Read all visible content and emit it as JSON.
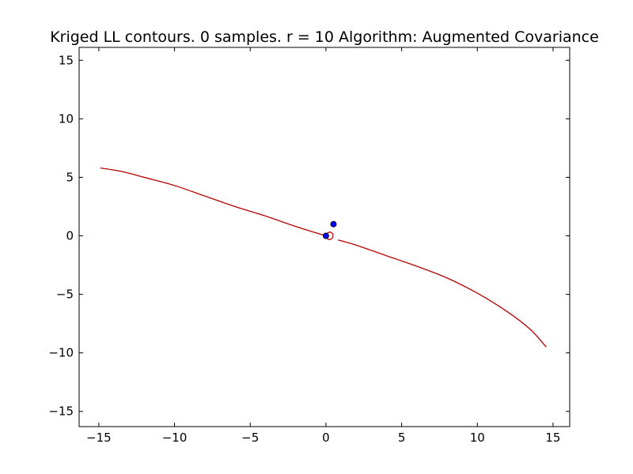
{
  "chart_data": {
    "type": "line",
    "title": "Kriged LL contours. 0 samples. r = 10 Algorithm: Augmented Covariance",
    "xlabel": "",
    "ylabel": "",
    "xlim": [
      -16.3,
      16.1
    ],
    "ylim": [
      -16.3,
      16.1
    ],
    "x_ticks": [
      -15,
      -10,
      -5,
      0,
      5,
      10,
      15
    ],
    "x_tick_labels": [
      "−15",
      "−10",
      "−5",
      "0",
      "5",
      "10",
      "15"
    ],
    "y_ticks": [
      -15,
      -10,
      -5,
      0,
      5,
      10,
      15
    ],
    "y_tick_labels": [
      "−15",
      "−10",
      "−5",
      "0",
      "5",
      "10",
      "15"
    ],
    "grid": false,
    "legend": "none",
    "series": [
      {
        "kind": "contour",
        "color": "#b30000",
        "x": [
          -14.9,
          -13.5,
          -12.0,
          -10.0,
          -8.0,
          -6.0,
          -4.0,
          -2.0,
          0.0
        ],
        "y": [
          5.8,
          5.5,
          5.0,
          4.3,
          3.4,
          2.5,
          1.7,
          0.8,
          0.0
        ]
      },
      {
        "kind": "contour",
        "color": "#b30000",
        "x": [
          0.8,
          2.0,
          4.0,
          6.0,
          8.0,
          10.0,
          12.0,
          13.5,
          14.55
        ],
        "y": [
          -0.35,
          -0.8,
          -1.7,
          -2.6,
          -3.6,
          -4.9,
          -6.5,
          -8.0,
          -9.5
        ]
      },
      {
        "kind": "contour-loop",
        "color": "#b30000",
        "cx": 0.25,
        "cy": 0.0,
        "rx": 0.22,
        "ry": 0.32
      },
      {
        "kind": "points",
        "color": "#0000ff",
        "x": [
          0.0,
          0.5
        ],
        "y": [
          0.0,
          1.0
        ]
      }
    ]
  }
}
